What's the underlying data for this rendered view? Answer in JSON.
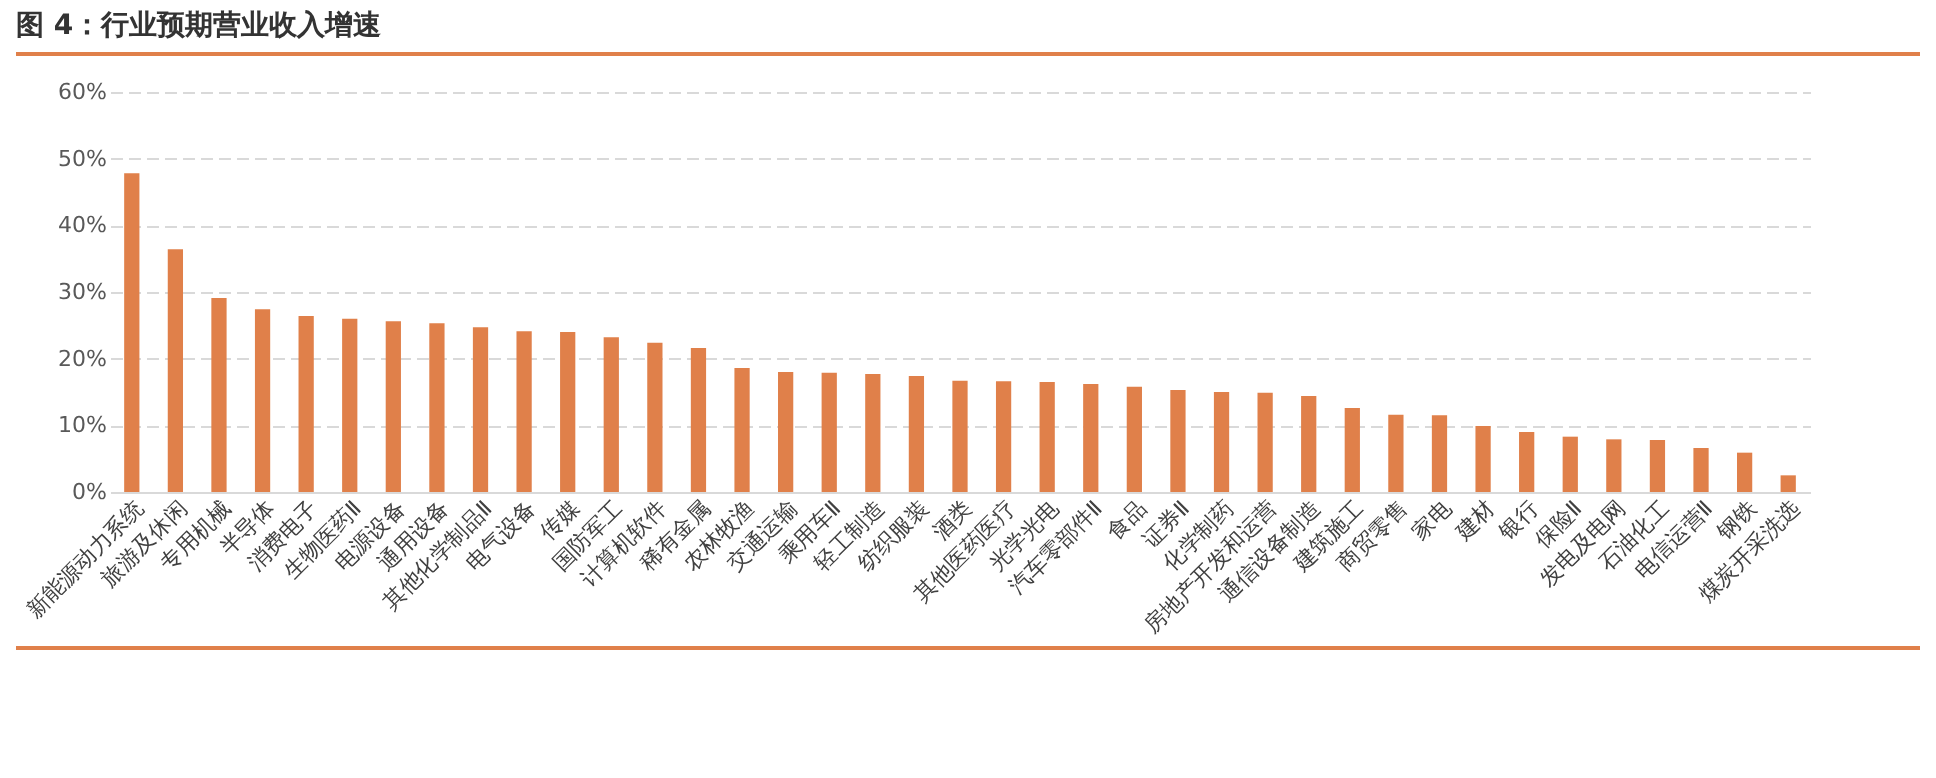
{
  "chart_data": {
    "type": "bar",
    "title": "图 4：行业预期营业收入增速",
    "categories": [
      "新能源动力系统",
      "旅游及休闲",
      "专用机械",
      "半导体",
      "消费电子",
      "生物医药Ⅱ",
      "电源设备",
      "通用设备",
      "其他化学制品Ⅱ",
      "电气设备",
      "传媒",
      "国防军工",
      "计算机软件",
      "稀有金属",
      "农林牧渔",
      "交通运输",
      "乘用车Ⅱ",
      "轻工制造",
      "纺织服装",
      "酒类",
      "其他医药医疗",
      "光学光电",
      "汽车零部件Ⅱ",
      "食品",
      "证券Ⅱ",
      "化学制药",
      "房地产开发和运营",
      "通信设备制造",
      "建筑施工",
      "商贸零售",
      "家电",
      "建材",
      "银行",
      "保险Ⅱ",
      "发电及电网",
      "石油化工",
      "电信运营Ⅱ",
      "钢铁",
      "煤炭开采洗选"
    ],
    "values": [
      47.8,
      36.4,
      29.1,
      27.4,
      26.4,
      26.0,
      25.6,
      25.3,
      24.7,
      24.1,
      24.0,
      23.2,
      22.4,
      21.6,
      18.6,
      18.0,
      17.9,
      17.7,
      17.4,
      16.7,
      16.6,
      16.5,
      16.2,
      15.8,
      15.3,
      15.0,
      14.9,
      14.4,
      12.6,
      11.6,
      11.5,
      9.9,
      9.0,
      8.3,
      7.9,
      7.8,
      6.6,
      5.9,
      2.5
    ],
    "color": "#e0804a",
    "ylim": [
      0,
      60
    ],
    "yticks": [
      {
        "value": 0,
        "label": "0%"
      },
      {
        "value": 10,
        "label": "10%"
      },
      {
        "value": 20,
        "label": "20%"
      },
      {
        "value": 30,
        "label": "30%"
      },
      {
        "value": 40,
        "label": "40%"
      },
      {
        "value": 50,
        "label": "50%"
      },
      {
        "value": 60,
        "label": "60%"
      }
    ],
    "grid": "y"
  }
}
